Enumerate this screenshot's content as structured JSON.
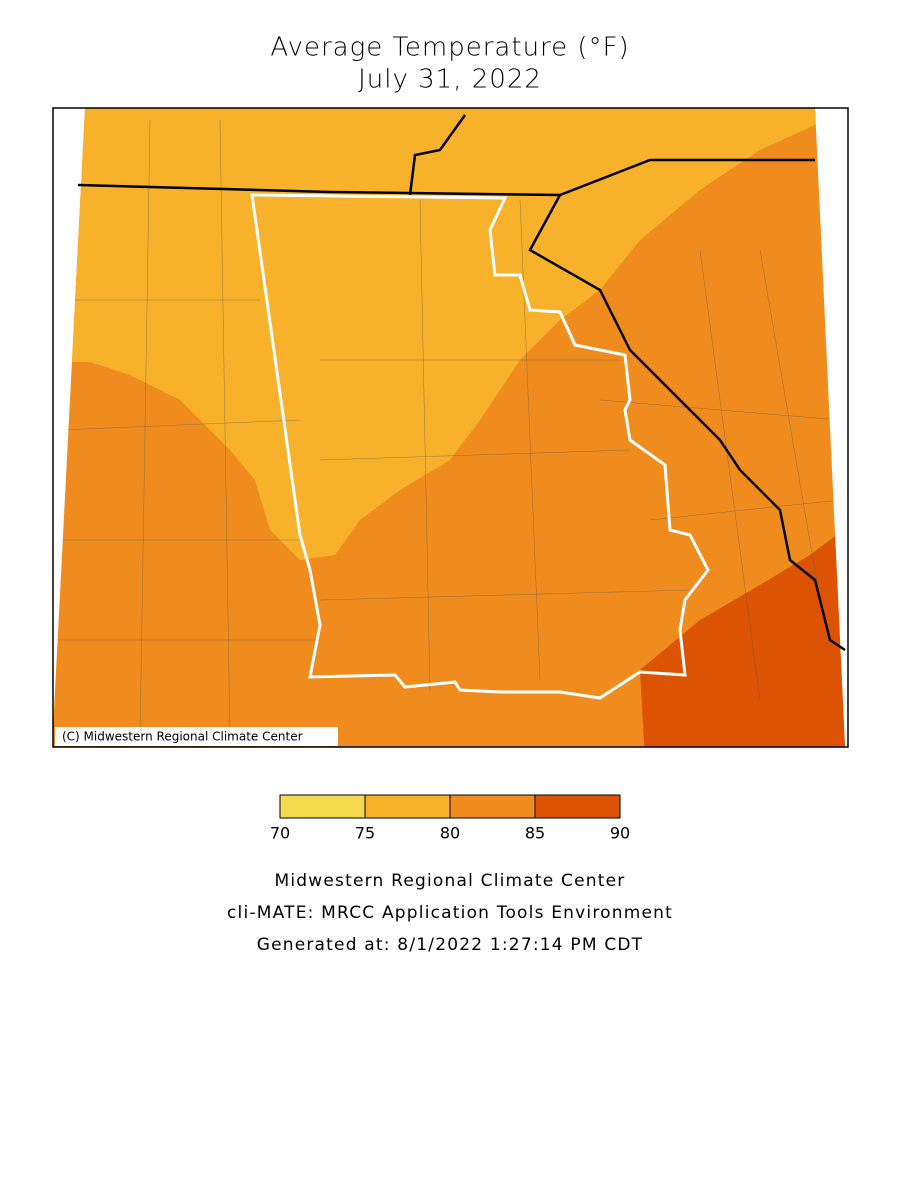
{
  "title": [
    "Average Temperature (°F)",
    "July 31, 2022"
  ],
  "map": {
    "credit": "(C) Midwestern Regional Climate Center"
  },
  "legend": {
    "bins": [
      70,
      75,
      80,
      85,
      90
    ],
    "colors": [
      "#f5da50",
      "#f7b12a",
      "#ef8c1d",
      "#dc5304"
    ]
  },
  "footer": [
    "Midwestern Regional Climate Center",
    "cli-MATE: MRCC Application Tools Environment",
    "Generated at: 8/1/2022 1:27:14 PM CDT"
  ]
}
